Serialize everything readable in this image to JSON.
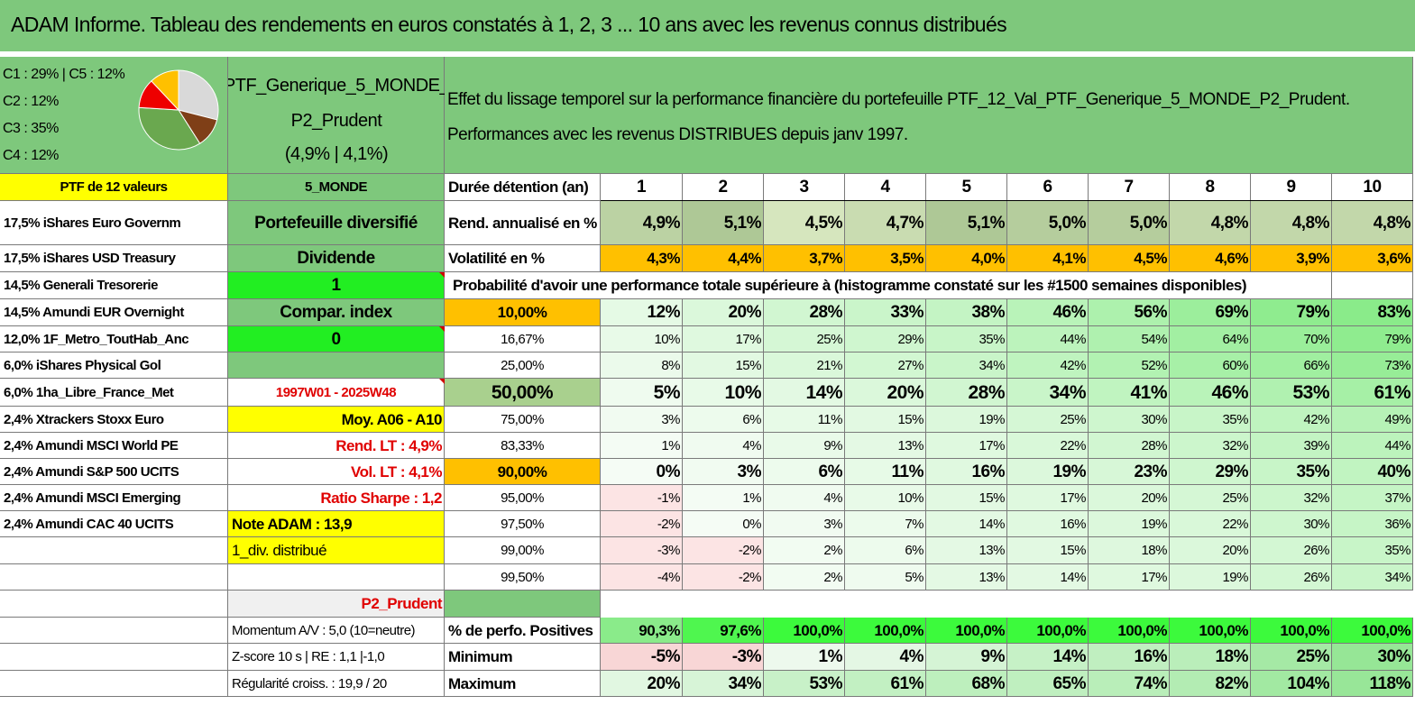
{
  "title": "ADAM Informe. Tableau des rendements en euros constatés à 1, 2, 3 ... 10 ans avec les revenus connus distribués",
  "pie": {
    "labels": [
      "C1 : 29% | C5 : 12%",
      "C2 : 12%",
      "C3 : 35%",
      "C4 : 12%"
    ],
    "colors": [
      "#d9d9d9",
      "#7f3f17",
      "#6aa84f",
      "#ee0000",
      "#ffc000"
    ]
  },
  "portfolio": {
    "name_line1": "PTF_Generique_5_MONDE_",
    "name_line2": "P2_Prudent",
    "perf": "(4,9% | 4,1%)",
    "description_line1": "Effet du lissage temporel sur la performance financière du portefeuille PTF_12_Val_PTF_Generique_5_MONDE_P2_Prudent.",
    "description_line2": "Performances avec les revenus DISTRIBUES depuis janv 1997."
  },
  "holdings_header": "PTF de 12 valeurs",
  "holdings": [
    "17,5% iShares Euro Governm",
    "17,5% iShares USD Treasury",
    "14,5% Generali Tresorerie",
    "14,5% Amundi EUR Overnight",
    "12,0% 1F_Metro_ToutHab_Anc",
    "6,0% iShares Physical Gol",
    "6,0% 1ha_Libre_France_Met",
    "2,4% Xtrackers Stoxx Euro",
    "2,4% Amundi MSCI World PE",
    "2,4% Amundi S&P 500 UCITS",
    "2,4% Amundi MSCI Emerging",
    "2,4% Amundi CAC 40 UCITS"
  ],
  "info": {
    "zone": "5_MONDE",
    "diversification": "Portefeuille diversifié",
    "dividend_label": "Dividende",
    "dividend_value": "1",
    "compar_label": "Compar. index",
    "compar_value": "0",
    "period": "1997W01 - 2025W48",
    "moy": "Moy. A06 - A10",
    "rend_lt": "Rend. LT : 4,9%",
    "vol_lt": "Vol. LT : 4,1%",
    "sharpe": "Ratio Sharpe : 1,2",
    "note": "Note ADAM : 13,9",
    "distribution": "1_div. distribué",
    "profile": "P2_Prudent",
    "momentum": "Momentum A/V : 5,0 (10=neutre)",
    "zscore": "Z-score 10 s | RE : 1,1 |-1,0",
    "regularite": "Régularité croiss. : 19,9 / 20"
  },
  "table": {
    "duration_label": "Durée détention (an)",
    "years": [
      "1",
      "2",
      "3",
      "4",
      "5",
      "6",
      "7",
      "8",
      "9",
      "10"
    ],
    "rend_label": "Rend. annualisé en %",
    "rend": [
      "4,9%",
      "5,1%",
      "4,5%",
      "4,7%",
      "5,1%",
      "5,0%",
      "5,0%",
      "4,8%",
      "4,8%",
      "4,8%"
    ],
    "vol_label": "Volatilité en %",
    "vol": [
      "4,3%",
      "4,4%",
      "3,7%",
      "3,5%",
      "4,0%",
      "4,1%",
      "4,5%",
      "4,6%",
      "3,9%",
      "3,6%"
    ],
    "prob_title": "Probabilité d'avoir une performance totale supérieure à (histogramme constaté sur les #1500 semaines disponibles)",
    "prob_rows": [
      {
        "threshold": "10,00%",
        "values": [
          "12%",
          "20%",
          "28%",
          "33%",
          "38%",
          "46%",
          "56%",
          "69%",
          "79%",
          "83%"
        ]
      },
      {
        "threshold": "16,67%",
        "values": [
          "10%",
          "17%",
          "25%",
          "29%",
          "35%",
          "44%",
          "54%",
          "64%",
          "70%",
          "79%"
        ]
      },
      {
        "threshold": "25,00%",
        "values": [
          "8%",
          "15%",
          "21%",
          "27%",
          "34%",
          "42%",
          "52%",
          "60%",
          "66%",
          "73%"
        ]
      },
      {
        "threshold": "50,00%",
        "values": [
          "5%",
          "10%",
          "14%",
          "20%",
          "28%",
          "34%",
          "41%",
          "46%",
          "53%",
          "61%"
        ]
      },
      {
        "threshold": "75,00%",
        "values": [
          "3%",
          "6%",
          "11%",
          "15%",
          "19%",
          "25%",
          "30%",
          "35%",
          "42%",
          "49%"
        ]
      },
      {
        "threshold": "83,33%",
        "values": [
          "1%",
          "4%",
          "9%",
          "13%",
          "17%",
          "22%",
          "28%",
          "32%",
          "39%",
          "44%"
        ]
      },
      {
        "threshold": "90,00%",
        "values": [
          "0%",
          "3%",
          "6%",
          "11%",
          "16%",
          "19%",
          "23%",
          "29%",
          "35%",
          "40%"
        ]
      },
      {
        "threshold": "95,00%",
        "values": [
          "-1%",
          "1%",
          "4%",
          "10%",
          "15%",
          "17%",
          "20%",
          "25%",
          "32%",
          "37%"
        ]
      },
      {
        "threshold": "97,50%",
        "values": [
          "-2%",
          "0%",
          "3%",
          "7%",
          "14%",
          "16%",
          "19%",
          "22%",
          "30%",
          "36%"
        ]
      },
      {
        "threshold": "99,00%",
        "values": [
          "-3%",
          "-2%",
          "2%",
          "6%",
          "13%",
          "15%",
          "18%",
          "20%",
          "26%",
          "35%"
        ]
      },
      {
        "threshold": "99,50%",
        "values": [
          "-4%",
          "-2%",
          "2%",
          "5%",
          "13%",
          "14%",
          "17%",
          "19%",
          "26%",
          "34%"
        ]
      }
    ],
    "pos_label": "% de perfo. Positives",
    "pos": [
      "90,3%",
      "97,6%",
      "100,0%",
      "100,0%",
      "100,0%",
      "100,0%",
      "100,0%",
      "100,0%",
      "100,0%",
      "100,0%"
    ],
    "min_label": "Minimum",
    "min": [
      "-5%",
      "-3%",
      "1%",
      "4%",
      "9%",
      "14%",
      "16%",
      "18%",
      "25%",
      "30%"
    ],
    "max_label": "Maximum",
    "max": [
      "20%",
      "34%",
      "53%",
      "61%",
      "68%",
      "65%",
      "74%",
      "82%",
      "104%",
      "118%"
    ]
  }
}
